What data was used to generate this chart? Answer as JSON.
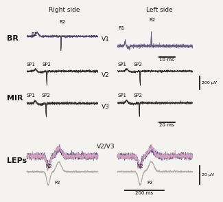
{
  "title_right": "Right side",
  "title_left": "Left side",
  "label_BR": "BR",
  "label_MIR": "MIR",
  "label_LEPs": "LEPs",
  "label_V1": "V1",
  "label_V2": "V2",
  "label_V3": "V3",
  "label_V2V3": "V2/V3",
  "scalebar_10ms": "10 ms",
  "scalebar_200uV": "200 μV",
  "scalebar_20ms": "20 ms",
  "scalebar_20uV": "20 μV",
  "scalebar_200ms": "200 ms",
  "bg_color": "#f5f3ef",
  "trace_colors_br": [
    "#5a4a7a",
    "#7a5a8a",
    "#9a7aaa",
    "#4a3a6a",
    "#6a5a8a",
    "#3a3a5a"
  ],
  "trace_colors_mir": [
    "#2a2a2a",
    "#444444",
    "#666666",
    "#333333",
    "#1a1a1a"
  ],
  "trace_colors_lep_multi": [
    "#5a4a7a",
    "#7a6a8a",
    "#aa8abb",
    "#3a3a5a",
    "#6a5a7a",
    "#8a7a9a",
    "#cc99aa",
    "#ddaacc"
  ],
  "trace_color_avg": "#aaaaaa",
  "lw_trace": 0.4,
  "lw_scalebar": 1.2
}
